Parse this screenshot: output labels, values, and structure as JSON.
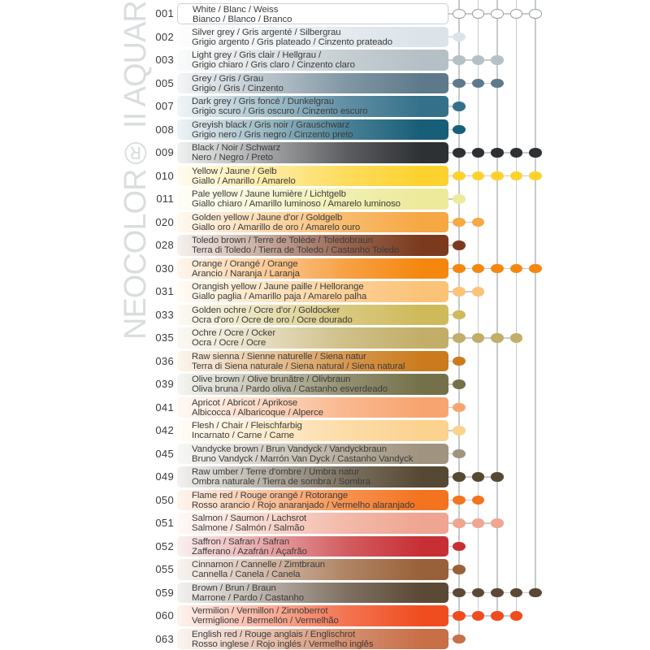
{
  "title": {
    "vertical_text": "NEOCOLOR® II AQUARELL"
  },
  "assortment_columns": 5,
  "rows": [
    {
      "code": "001",
      "line1": "White / Blanc / Weiss",
      "line2": "Bianco / Blanco / Branco",
      "hex": "#FFFFFF",
      "dots": 5
    },
    {
      "code": "002",
      "line1": "Silver grey / Gris argenté / Silbergrau",
      "line2": "Grigio argento / Gris plateado / Cinzento prateado",
      "hex": "#DCE4EA",
      "dots": 1
    },
    {
      "code": "003",
      "line1": "Light grey / Gris clair / Hellgrau /",
      "line2": "Grigio chiaro / Gris claro / Cinzento claro",
      "hex": "#B5C0C6",
      "dots": 3
    },
    {
      "code": "005",
      "line1": "Grey / Gris / Grau",
      "line2": "Grigio / Gris / Cinzento",
      "hex": "#5E7A8A",
      "dots": 3
    },
    {
      "code": "007",
      "line1": "Dark grey / Gris foncé / Dunkelgrau",
      "line2": "Grigio scuro / Gris oscuro / Cinzento escuro",
      "hex": "#35708A",
      "dots": 1
    },
    {
      "code": "008",
      "line1": "Greyish black / Gris noir / Grauschwarz",
      "line2": "Grigio nero / Gris negro / Cinzento preto",
      "hex": "#175E78",
      "dots": 1
    },
    {
      "code": "009",
      "line1": "Black / Noir / Schwarz",
      "line2": "Nero / Negro / Preto",
      "hex": "#2E3134",
      "dots": 5
    },
    {
      "code": "010",
      "line1": "Yellow / Jaune / Gelb",
      "line2": "Giallo / Amarillo / Amarelo",
      "hex": "#FDD22E",
      "dots": 5
    },
    {
      "code": "011",
      "line1": "Pale yellow / Jaune lumière / Lichtgelb",
      "line2": "Giallo chiaro / Amarillo luminoso / Amarelo luminoso",
      "hex": "#EDEA9C",
      "dots": 1
    },
    {
      "code": "020",
      "line1": "Golden yellow / Jaune d'or / Goldgelb",
      "line2": "Giallo oro / Amarillo de oro / Amarelo ouro",
      "hex": "#F6A844",
      "dots": 2
    },
    {
      "code": "028",
      "line1": "Toledo brown / Terre de Tolède / Toledobraun",
      "line2": "Terra di Toledo / Tierra de Toledo / Castanho Toledo",
      "hex": "#7B3A1E",
      "dots": 1
    },
    {
      "code": "030",
      "line1": "Orange / Orangé / Orange",
      "line2": "Arancio / Naranja / Laranja",
      "hex": "#F5870F",
      "dots": 5
    },
    {
      "code": "031",
      "line1": "Orangish yellow / Jaune paille / Hellorange",
      "line2": "Giallo paglia / Amarillo paja / Amarelo palha",
      "hex": "#FBC378",
      "dots": 2
    },
    {
      "code": "033",
      "line1": "Golden ochre / Ocre d'or / Goldocker",
      "line2": "Ocra d'oro / Ocre de oro / Ocre dourado",
      "hex": "#CEBA5B",
      "dots": 1
    },
    {
      "code": "035",
      "line1": "Ochre / Ocre / Ocker",
      "line2": "Ocra / Ocre / Ocre",
      "hex": "#C2AE68",
      "dots": 4
    },
    {
      "code": "036",
      "line1": "Raw sienna / Sienne naturelle / Siena natur",
      "line2": "Terra di Siena naturale / Siena natural / Siena natural",
      "hex": "#CB7B1E",
      "dots": 1
    },
    {
      "code": "039",
      "line1": "Olive brown / Olive brunâtre / Olivbraun",
      "line2": "Oliva bruna / Pardo oliva / Castanho esverdeado",
      "hex": "#74714A",
      "dots": 1
    },
    {
      "code": "041",
      "line1": "Apricot / Abricot / Aprikose",
      "line2": "Albicocca / Albaricoque / Alperce",
      "hex": "#F7A470",
      "dots": 1
    },
    {
      "code": "042",
      "line1": "Flesh / Chair / Fleischfarbig",
      "line2": "Incarnato / Carne / Carne",
      "hex": "#FCD28F",
      "dots": 1
    },
    {
      "code": "045",
      "line1": "Vandycke brown / Brun Vandyck / Vandyckbraun",
      "line2": "Bruno Vandyck / Marrón Van Dyck / Castanho Vandyck",
      "hex": "#A09480",
      "dots": 1
    },
    {
      "code": "049",
      "line1": "Raw umber / Terre d'ombre / Umbra natur",
      "line2": "Ombra naturale / Tierra de sombra / Sombra",
      "hex": "#564933",
      "dots": 3
    },
    {
      "code": "050",
      "line1": "Flame red / Rouge orangé / Rotorange",
      "line2": "Rosso arancio / Rojo anaranjado / Vermelho alaranjado",
      "hex": "#F4731E",
      "dots": 2
    },
    {
      "code": "051",
      "line1": "Salmon / Saumon / Lachsrot",
      "line2": "Salmone / Salmón / Salmão",
      "hex": "#EFA591",
      "dots": 3
    },
    {
      "code": "052",
      "line1": "Saffron / Safran / Safran",
      "line2": "Zafferano / Azafrán / Açafrão",
      "hex": "#C72F35",
      "dots": 1
    },
    {
      "code": "055",
      "line1": "Cinnamon / Cannelle / Zimtbraun",
      "line2": "Cannella / Canela / Canela",
      "hex": "#996139",
      "dots": 1
    },
    {
      "code": "059",
      "line1": "Brown / Brun / Braun",
      "line2": "Marrone / Pardo / Castanho",
      "hex": "#5B4936",
      "dots": 5
    },
    {
      "code": "060",
      "line1": "Vermilion / Vermillon / Zinnoberrot",
      "line2": "Vermiglione / Bermellón / Vermelhão",
      "hex": "#EF4D20",
      "dots": 4
    },
    {
      "code": "063",
      "line1": "English red / Rouge anglais / Englischrot",
      "line2": "Rosso inglese / Rojo inglés / Vermelho inglês",
      "hex": "#C86F47",
      "dots": 1
    }
  ]
}
